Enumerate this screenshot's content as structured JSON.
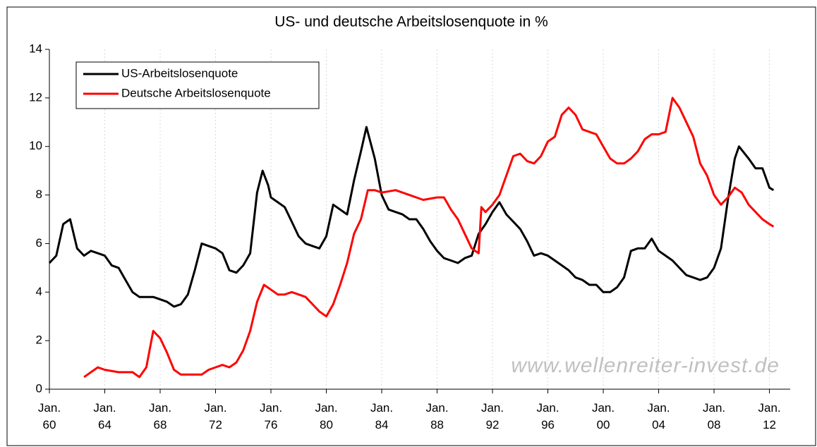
{
  "chart_data": {
    "type": "line",
    "title": "US- und deutsche Arbeitslosenquote in %",
    "annotation": "www.wellenreiter-invest.de",
    "xlim": [
      1960,
      2013.5
    ],
    "ylim": [
      0,
      14
    ],
    "yticks": [
      0,
      2,
      4,
      6,
      8,
      10,
      12,
      14
    ],
    "xticks": [
      {
        "value": 1960,
        "label": "Jan. 60"
      },
      {
        "value": 1964,
        "label": "Jan. 64"
      },
      {
        "value": 1968,
        "label": "Jan. 68"
      },
      {
        "value": 1972,
        "label": "Jan. 72"
      },
      {
        "value": 1976,
        "label": "Jan. 76"
      },
      {
        "value": 1980,
        "label": "Jan. 80"
      },
      {
        "value": 1984,
        "label": "Jan. 84"
      },
      {
        "value": 1988,
        "label": "Jan. 88"
      },
      {
        "value": 1992,
        "label": "Jan. 92"
      },
      {
        "value": 1996,
        "label": "Jan. 96"
      },
      {
        "value": 2000,
        "label": "Jan. 00"
      },
      {
        "value": 2004,
        "label": "Jan. 04"
      },
      {
        "value": 2008,
        "label": "Jan. 08"
      },
      {
        "value": 2012,
        "label": "Jan. 12"
      }
    ],
    "legend": "upper left",
    "grid": "vertical",
    "series": [
      {
        "name": "US-Arbeitslosenquote",
        "color": "#000000",
        "x": [
          1960,
          1960.5,
          1961,
          1961.5,
          1962,
          1962.5,
          1963,
          1963.5,
          1964,
          1964.5,
          1965,
          1965.5,
          1966,
          1966.5,
          1967,
          1967.5,
          1968,
          1968.5,
          1969,
          1969.5,
          1970,
          1970.5,
          1971,
          1971.5,
          1972,
          1972.5,
          1973,
          1973.5,
          1974,
          1974.5,
          1975,
          1975.4,
          1975.8,
          1976,
          1976.5,
          1977,
          1977.5,
          1978,
          1978.5,
          1979,
          1979.5,
          1980,
          1980.5,
          1981,
          1981.5,
          1982,
          1982.5,
          1982.9,
          1983.5,
          1984,
          1984.5,
          1985,
          1985.5,
          1986,
          1986.5,
          1987,
          1987.5,
          1988,
          1988.5,
          1989,
          1989.5,
          1990,
          1990.5,
          1991,
          1991.5,
          1992,
          1992.5,
          1993,
          1993.5,
          1994,
          1994.5,
          1995,
          1995.5,
          1996,
          1996.5,
          1997,
          1997.5,
          1998,
          1998.5,
          1999,
          1999.5,
          2000,
          2000.5,
          2001,
          2001.5,
          2002,
          2002.5,
          2003,
          2003.5,
          2004,
          2004.5,
          2005,
          2005.5,
          2006,
          2006.5,
          2007,
          2007.5,
          2008,
          2008.5,
          2009,
          2009.5,
          2009.8,
          2010.5,
          2011,
          2011.5,
          2012,
          2012.3
        ],
        "values": [
          5.2,
          5.5,
          6.8,
          7.0,
          5.8,
          5.5,
          5.7,
          5.6,
          5.5,
          5.1,
          5.0,
          4.5,
          4.0,
          3.8,
          3.8,
          3.8,
          3.7,
          3.6,
          3.4,
          3.5,
          3.9,
          4.9,
          6.0,
          5.9,
          5.8,
          5.6,
          4.9,
          4.8,
          5.1,
          5.6,
          8.1,
          9.0,
          8.4,
          7.9,
          7.7,
          7.5,
          6.9,
          6.3,
          6.0,
          5.9,
          5.8,
          6.3,
          7.6,
          7.4,
          7.2,
          8.6,
          9.8,
          10.8,
          9.5,
          8.0,
          7.4,
          7.3,
          7.2,
          7.0,
          7.0,
          6.6,
          6.1,
          5.7,
          5.4,
          5.3,
          5.2,
          5.4,
          5.5,
          6.4,
          6.8,
          7.3,
          7.7,
          7.2,
          6.9,
          6.6,
          6.1,
          5.5,
          5.6,
          5.5,
          5.3,
          5.1,
          4.9,
          4.6,
          4.5,
          4.3,
          4.3,
          4.0,
          4.0,
          4.2,
          4.6,
          5.7,
          5.8,
          5.8,
          6.2,
          5.7,
          5.5,
          5.3,
          5.0,
          4.7,
          4.6,
          4.5,
          4.6,
          5.0,
          5.8,
          7.8,
          9.5,
          10.0,
          9.5,
          9.1,
          9.1,
          8.3,
          8.2
        ]
      },
      {
        "name": "Deutsche Arbeitslosenquote",
        "color": "#ff0000",
        "x": [
          1962.5,
          1963,
          1963.5,
          1964,
          1965,
          1966,
          1966.5,
          1967,
          1967.5,
          1968,
          1968.5,
          1969,
          1969.5,
          1970,
          1971,
          1971.5,
          1972,
          1972.5,
          1973,
          1973.5,
          1974,
          1974.5,
          1975,
          1975.5,
          1976,
          1976.5,
          1977,
          1977.5,
          1978,
          1978.5,
          1979,
          1979.5,
          1980,
          1980.5,
          1981,
          1981.5,
          1982,
          1982.5,
          1983,
          1983.5,
          1984,
          1985,
          1986,
          1986.5,
          1987,
          1988,
          1988.5,
          1989,
          1989.5,
          1990,
          1990.5,
          1991,
          1991.2,
          1991.5,
          1992,
          1992.5,
          1993,
          1993.5,
          1994,
          1994.5,
          1995,
          1995.5,
          1996,
          1996.5,
          1997,
          1997.5,
          1998,
          1998.5,
          1999,
          1999.5,
          2000,
          2000.5,
          2001,
          2001.5,
          2002,
          2002.5,
          2003,
          2003.5,
          2004,
          2004.5,
          2005,
          2005.5,
          2006,
          2006.5,
          2007,
          2007.5,
          2008,
          2008.5,
          2009,
          2009.5,
          2010,
          2010.5,
          2011,
          2011.5,
          2012,
          2012.3
        ],
        "values": [
          0.5,
          0.7,
          0.9,
          0.8,
          0.7,
          0.7,
          0.5,
          0.9,
          2.4,
          2.1,
          1.5,
          0.8,
          0.6,
          0.6,
          0.6,
          0.8,
          0.9,
          1.0,
          0.9,
          1.1,
          1.6,
          2.4,
          3.6,
          4.3,
          4.1,
          3.9,
          3.9,
          4.0,
          3.9,
          3.8,
          3.5,
          3.2,
          3.0,
          3.5,
          4.3,
          5.2,
          6.4,
          7.0,
          8.2,
          8.2,
          8.1,
          8.2,
          8.0,
          7.9,
          7.8,
          7.9,
          7.9,
          7.4,
          7.0,
          6.4,
          5.8,
          5.6,
          7.5,
          7.3,
          7.6,
          8.0,
          8.8,
          9.6,
          9.7,
          9.4,
          9.3,
          9.6,
          10.2,
          10.4,
          11.3,
          11.6,
          11.3,
          10.7,
          10.6,
          10.5,
          10.0,
          9.5,
          9.3,
          9.3,
          9.5,
          9.8,
          10.3,
          10.5,
          10.5,
          10.6,
          12.0,
          11.6,
          11.0,
          10.4,
          9.3,
          8.8,
          8.0,
          7.6,
          7.9,
          8.3,
          8.1,
          7.6,
          7.3,
          7.0,
          6.8,
          6.7
        ]
      }
    ]
  }
}
